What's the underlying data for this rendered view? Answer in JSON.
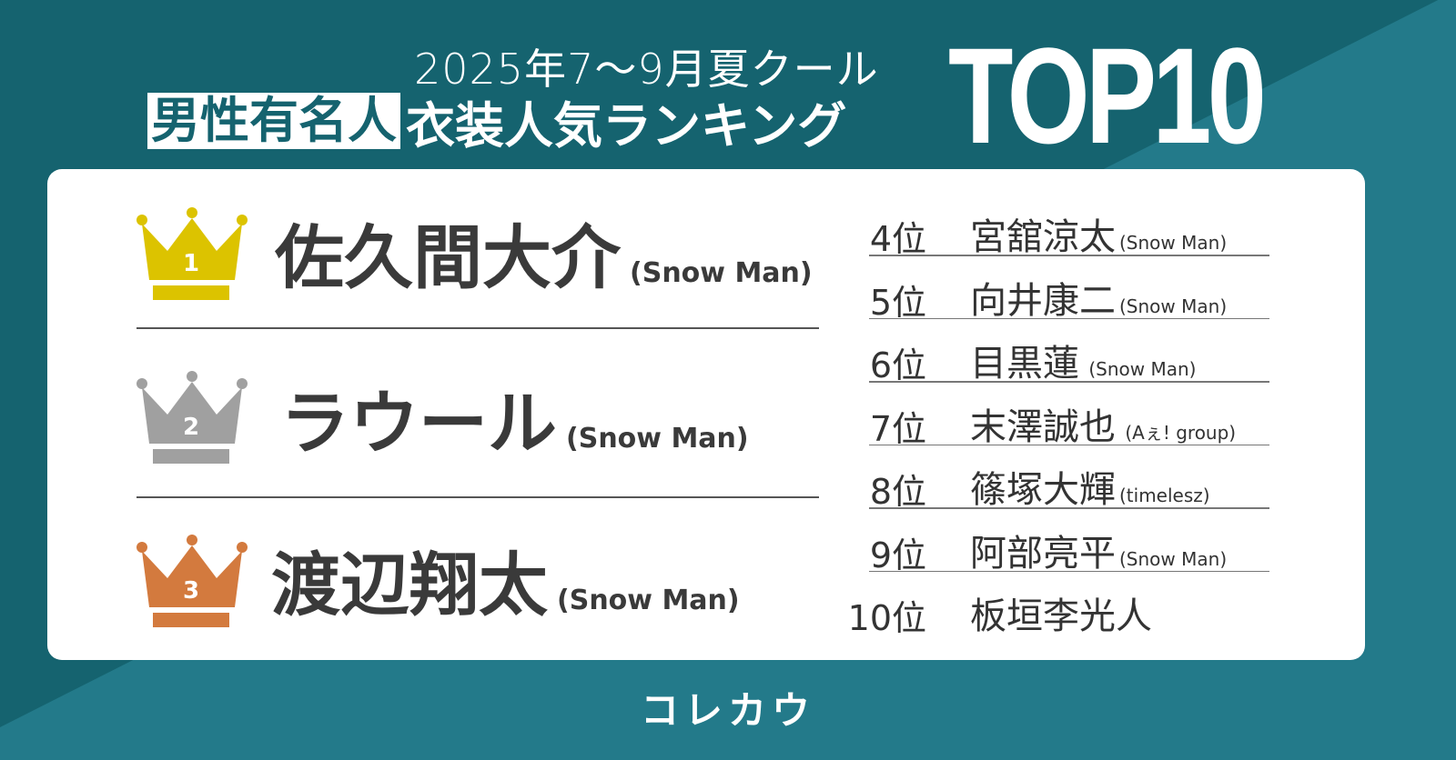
{
  "header": {
    "subtitle": "2025年7〜9月夏クール",
    "title_highlight": "男性有名人",
    "title_rest": "衣装人気ランキング",
    "badge": "TOP10"
  },
  "colors": {
    "background": "#15636f",
    "background_light": "#237a8a",
    "gold": "#dcc300",
    "silver": "#a0a0a0",
    "bronze": "#d37a3e"
  },
  "top3": [
    {
      "rank": "1",
      "name": "佐久間大介",
      "group": "(Snow Man)",
      "icon": "gold-crown-icon"
    },
    {
      "rank": "2",
      "name": "ラウール",
      "group": "(Snow Man)",
      "icon": "silver-crown-icon"
    },
    {
      "rank": "3",
      "name": "渡辺翔太",
      "group": "(Snow Man)",
      "icon": "bronze-crown-icon"
    }
  ],
  "others": [
    {
      "rank": "4位",
      "name": "宮舘涼太",
      "group": "(Snow Man)"
    },
    {
      "rank": "5位",
      "name": "向井康二",
      "group": "(Snow Man)"
    },
    {
      "rank": "6位",
      "name": "目黒蓮",
      "group": " (Snow Man)"
    },
    {
      "rank": "7位",
      "name": "末澤誠也",
      "group": " (Aぇ! group)"
    },
    {
      "rank": "8位",
      "name": "篠塚大輝",
      "group": "(timelesz)"
    },
    {
      "rank": "9位",
      "name": "阿部亮平",
      "group": "(Snow Man)"
    },
    {
      "rank": "10位",
      "name": "板垣李光人",
      "group": ""
    }
  ],
  "footer": {
    "brand": "コレカウ"
  }
}
